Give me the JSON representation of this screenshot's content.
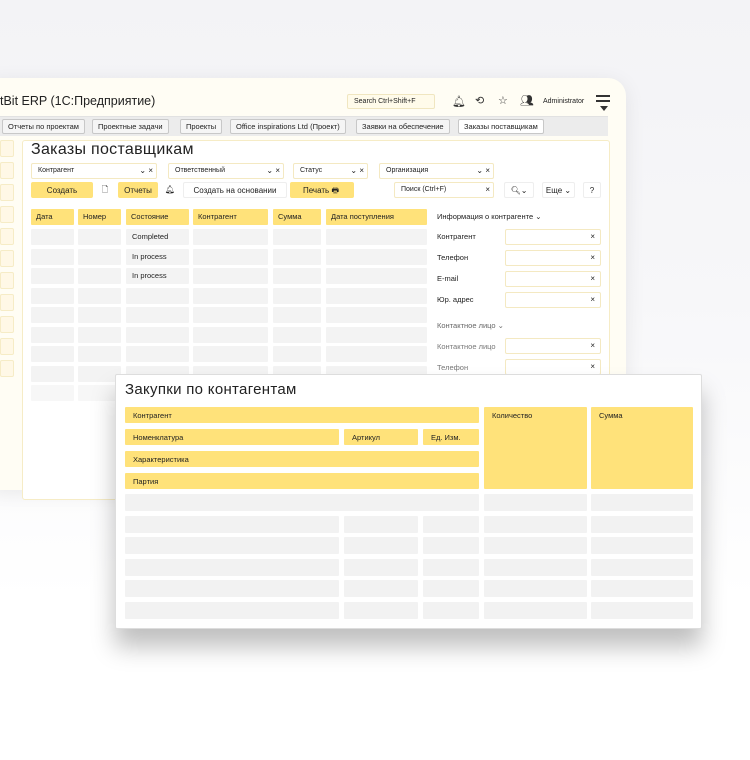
{
  "app": {
    "title": "tBit ERP (1С:Предприятие)",
    "search_placeholder": "Search Ctrl+Shift+F",
    "user": "Administrator",
    "icons": [
      "bell-icon",
      "history-icon",
      "star-icon",
      "users-icon",
      "menu-icon"
    ]
  },
  "tabs": [
    {
      "label": "Отчеты по проектам"
    },
    {
      "label": "Проектные задачи"
    },
    {
      "label": "Проекты"
    },
    {
      "label": "Office inspirations Ltd (Проект)"
    },
    {
      "label": "Заявки на обеспечение"
    },
    {
      "label": "Заказы поставщикам",
      "active": true
    }
  ],
  "orders": {
    "title": "Заказы поставщикам",
    "filters": [
      "Контрагент",
      "Ответственный",
      "Статус",
      "Организация"
    ],
    "toolbar": {
      "create": "Создать",
      "reports": "Отчеты",
      "create_based": "Создать на основании",
      "print": "Печать",
      "search_placeholder": "Поиск (Ctrl+F)",
      "more": "Еще",
      "help": "?"
    },
    "columns": [
      "Дата",
      "Номер",
      "Состояние",
      "Контрагент",
      "Сумма",
      "Дата поступления"
    ],
    "statuses": [
      "Completed",
      "In process",
      "In process"
    ],
    "info": {
      "title": "Информация  о контрагенте",
      "fields": [
        "Контрагент",
        "Телефон",
        "E-mail",
        "Юр. адрес"
      ],
      "contact_title": "Контактное лицо",
      "contact_fields": [
        "Контактное лицо",
        "Телефон"
      ]
    }
  },
  "purchases": {
    "title": "Закупки по контагентам",
    "headers": {
      "counterparty": "Контрагент",
      "nomenclature": "Номенклатура",
      "article": "Артикул",
      "unit": "Ед. Изм.",
      "characteristic": "Характеристика",
      "batch": "Партия",
      "quantity": "Количество",
      "sum": "Сумма"
    }
  },
  "colors": {
    "accent": "#ffe27a",
    "cell": "#f3f3f3"
  }
}
